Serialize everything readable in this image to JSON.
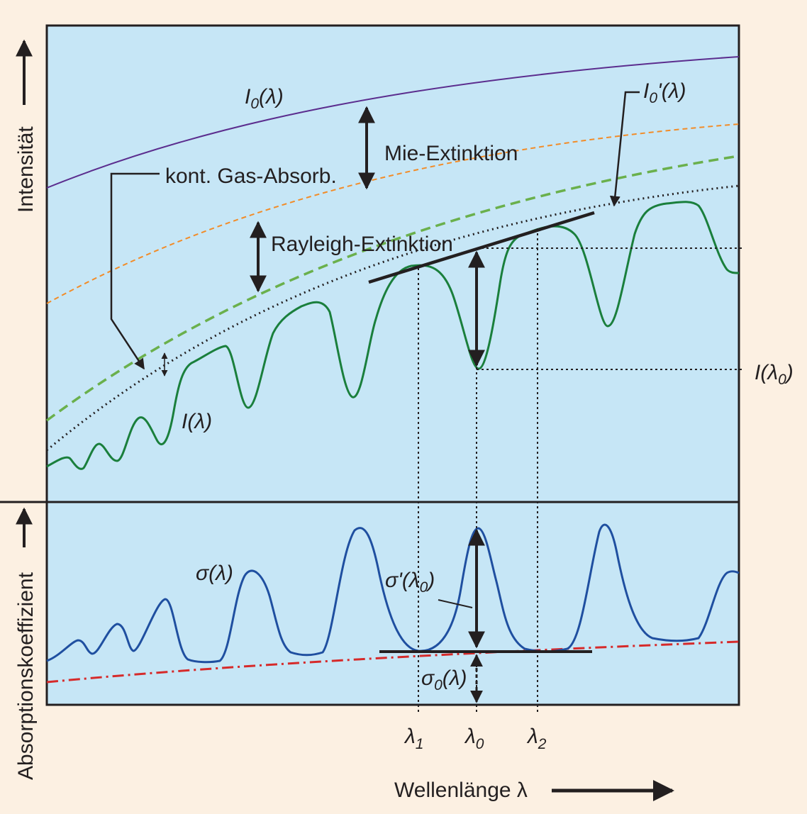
{
  "axes": {
    "y_upper": "Intensität",
    "y_lower": "Absorptionskoeffizient",
    "x": "Wellenlänge λ"
  },
  "labels": {
    "I0_main": "I",
    "I0_main_sub": "0",
    "I0_main_arg": "(λ)",
    "I0_prime_main": "I",
    "I0_prime_sub": "0",
    "I0_prime_arg": "'(λ)",
    "mie": "Mie-Extinktion",
    "rayleigh": "Rayleigh-Extinktion",
    "gas": "kont. Gas-Absorb.",
    "I_lambda": "I(λ)",
    "I_lambda0_main": "I(λ",
    "I_lambda0_sub": "0",
    "I_lambda0_close": ")",
    "sigma": "σ(λ)",
    "sigma_prime_main": "σ'(λ",
    "sigma_prime_sub": "0",
    "sigma_prime_close": ")",
    "sigma0_main": "σ",
    "sigma0_sub": "0",
    "sigma0_arg": "(λ)",
    "lambda1_main": "λ",
    "lambda1_sub": "1",
    "lambda0_main": "λ",
    "lambda0_sub": "0",
    "lambda2_main": "λ",
    "lambda2_sub": "2"
  },
  "colors": {
    "background": "#fcf0e2",
    "plot": "#c6e6f6",
    "I0": "#5b2d8e",
    "mie_curve": "#f28c28",
    "rayleigh_curve": "#6ab04c",
    "I_lambda": "#1a7f3c",
    "sigma": "#1f4fa0",
    "sigma0": "#d62a2a"
  }
}
